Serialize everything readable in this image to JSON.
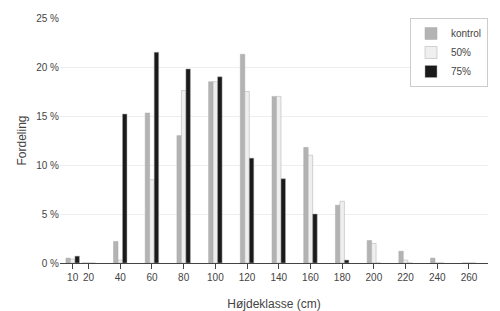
{
  "chart_data": {
    "type": "bar",
    "x": [
      10,
      20,
      40,
      60,
      80,
      100,
      120,
      140,
      160,
      180,
      200,
      220,
      240,
      260
    ],
    "series": [
      {
        "name": "kontrol",
        "color": "#b3b3b3",
        "values": [
          0.5,
          0.0,
          2.2,
          15.3,
          13.0,
          18.5,
          21.3,
          17.0,
          11.8,
          5.9,
          2.3,
          1.2,
          0.5,
          0.0
        ]
      },
      {
        "name": "50%",
        "color": "#efefef",
        "values": [
          0.4,
          0.0,
          0.3,
          8.5,
          17.6,
          18.5,
          17.5,
          17.0,
          11.0,
          6.3,
          2.0,
          0.3,
          0.0,
          0.0
        ]
      },
      {
        "name": "75%",
        "color": "#1a1a1a",
        "values": [
          0.7,
          0.0,
          15.2,
          21.5,
          19.8,
          19.0,
          10.7,
          8.6,
          5.0,
          0.3,
          0.0,
          0.0,
          0.0,
          0.0
        ]
      }
    ],
    "xlabel": "Højdeklasse (cm)",
    "ylabel": "Fordeling",
    "xlim": [
      2,
      272
    ],
    "xticks": [
      10,
      20,
      40,
      60,
      80,
      100,
      120,
      140,
      160,
      180,
      200,
      220,
      240,
      260
    ],
    "ylim": [
      0,
      25
    ],
    "yticks": [
      {
        "value": 0,
        "label": "0 %"
      },
      {
        "value": 5,
        "label": "5 %"
      },
      {
        "value": 10,
        "label": "10 %"
      },
      {
        "value": 15,
        "label": "15 %"
      },
      {
        "value": 20,
        "label": "20 %"
      },
      {
        "value": 25,
        "label": "25 %"
      }
    ],
    "grid": true,
    "legend": "upper right"
  }
}
